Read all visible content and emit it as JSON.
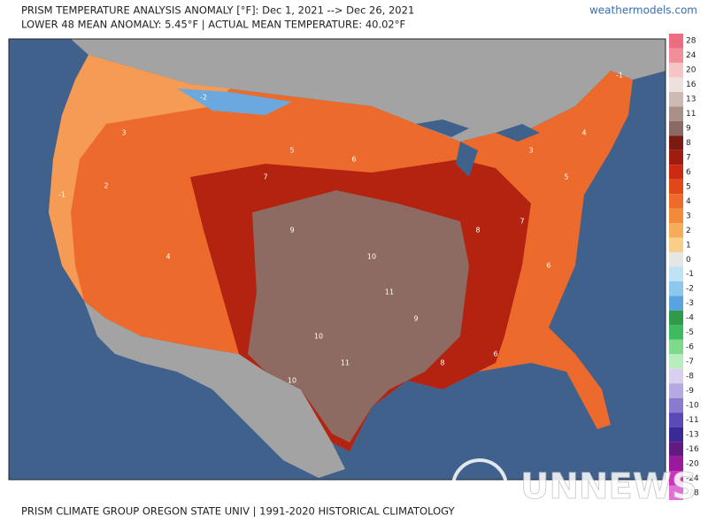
{
  "header": {
    "title": "PRISM TEMPERATURE ANALYSIS ANOMALY [°F]: Dec 1, 2021 --> Dec 26, 2021",
    "subtitle": "LOWER 48 MEAN ANOMALY: 5.45°F | ACTUAL MEAN TEMPERATURE: 40.02°F",
    "source": "weathermodels.com"
  },
  "colorbar": {
    "values": [
      28,
      24,
      20,
      16,
      13,
      11,
      9,
      8,
      7,
      6,
      5,
      4,
      3,
      2,
      1,
      0,
      -1,
      -2,
      -3,
      -4,
      -5,
      -6,
      -7,
      -8,
      -9,
      -10,
      -11,
      -13,
      -16,
      -20,
      -24,
      -28
    ],
    "colors": [
      "#ec6d80",
      "#f08f9a",
      "#f5c5c5",
      "#eee0dd",
      "#cdbab5",
      "#a88f88",
      "#8a6a62",
      "#7a1a12",
      "#a01c10",
      "#cc2a10",
      "#e04818",
      "#ee6a28",
      "#f38a3a",
      "#f6ac58",
      "#f8cf8a",
      "#e6e6e6",
      "#bfe2f5",
      "#8ec7ee",
      "#5aa3e0",
      "#2f9a4a",
      "#3fba5e",
      "#7fd88c",
      "#b9ecbf",
      "#d8d0ee",
      "#b6a8e0",
      "#8b7ad0",
      "#5a4ab8",
      "#3a2a98",
      "#601a80",
      "#9a1a9c",
      "#cc33bb",
      "#e070d8"
    ]
  },
  "map_labels": [
    "3",
    "2",
    "-2",
    "-1",
    "5",
    "4",
    "7",
    "6",
    "9",
    "10",
    "11",
    "10",
    "9",
    "8",
    "7",
    "6",
    "5",
    "4",
    "3",
    "11",
    "10",
    "8",
    "6",
    "-1"
  ],
  "footer": "PRISM CLIMATE GROUP OREGON STATE UNIV | 1991-2020 HISTORICAL CLIMATOLOGY",
  "watermark": "UNNEWS"
}
